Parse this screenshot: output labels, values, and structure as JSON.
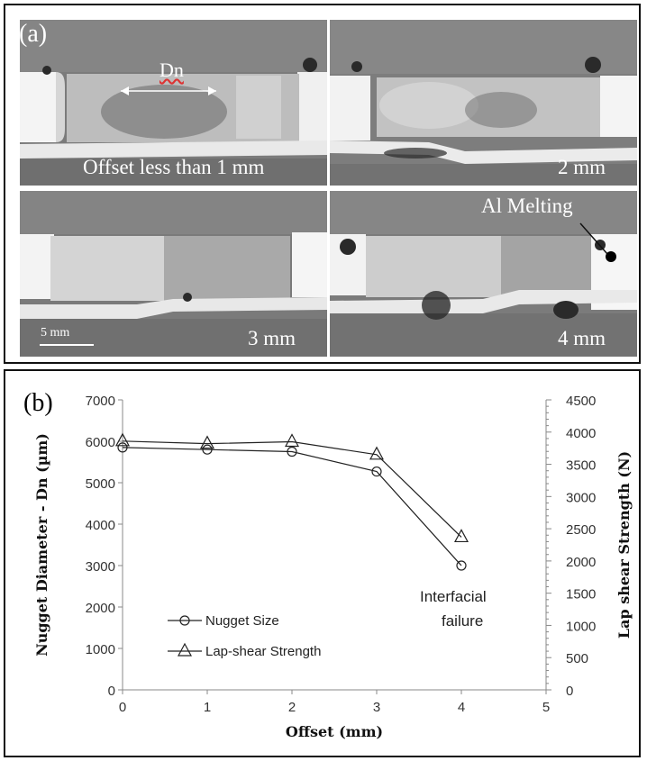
{
  "panel_a": {
    "tag": "(a)",
    "micrographs": [
      {
        "caption": "Offset less than 1 mm"
      },
      {
        "caption": "2 mm"
      },
      {
        "caption": "3 mm"
      },
      {
        "caption": "4 mm"
      }
    ],
    "dn_label": "Dn",
    "al_melting_label": "Al Melting",
    "scale_bar_label": "5 mm"
  },
  "panel_b": {
    "tag": "(b)",
    "annotation": "Interfacial failure"
  },
  "chart_data": {
    "type": "line",
    "xlabel": "Offset (mm)",
    "ylabel": "Nugget Diameter - Dn (µm)",
    "y2label": "Lap shear Strength  (N)",
    "xlim": [
      0,
      5
    ],
    "ylim": [
      0,
      7000
    ],
    "y2lim": [
      0,
      4500
    ],
    "xticks": [
      "0",
      "1",
      "2",
      "3",
      "4",
      "5"
    ],
    "yticks": [
      "0",
      "1000",
      "2000",
      "3000",
      "4000",
      "5000",
      "6000",
      "7000"
    ],
    "y2ticks": [
      "0",
      "500",
      "1000",
      "1500",
      "2000",
      "2500",
      "3000",
      "3500",
      "4000",
      "4500"
    ],
    "grid": false,
    "legend_position": "bottom-left",
    "series": [
      {
        "name": "Nugget Size",
        "axis": "left",
        "marker": "circle",
        "x": [
          0,
          1,
          2,
          3,
          4
        ],
        "values": [
          5850,
          5800,
          5750,
          5270,
          3000
        ]
      },
      {
        "name": "Lap-shear Strength",
        "axis": "right",
        "marker": "triangle",
        "x": [
          0,
          1,
          2,
          3,
          4
        ],
        "values": [
          3860,
          3820,
          3850,
          3650,
          2370
        ]
      }
    ],
    "colors": {
      "line": "#000000",
      "background": "#ffffff"
    }
  }
}
